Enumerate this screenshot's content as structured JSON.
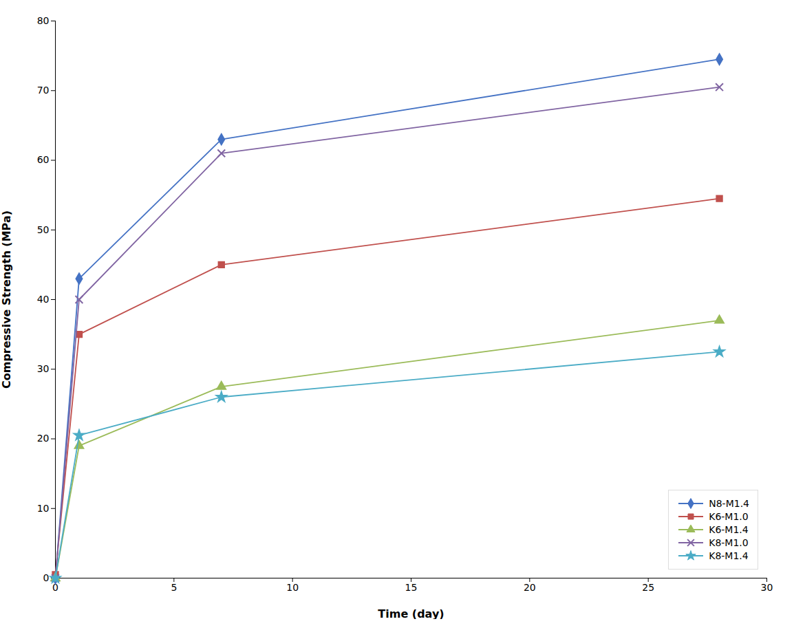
{
  "chart_data": {
    "type": "line",
    "xlabel": "Time (day)",
    "ylabel": "Compressive Strength (MPa)",
    "x": [
      0,
      1,
      7,
      28
    ],
    "series": [
      {
        "name": "N8-M1.4",
        "color": "#4472C4",
        "marker": "diamond",
        "values": [
          0.0,
          43.0,
          63.0,
          74.5
        ]
      },
      {
        "name": "K6-M1.0",
        "color": "#C0504D",
        "marker": "square",
        "values": [
          0.5,
          35.0,
          45.0,
          54.5
        ]
      },
      {
        "name": "K6-M1.4",
        "color": "#9BBB59",
        "marker": "triangle",
        "values": [
          0.0,
          19.0,
          27.5,
          37.0
        ]
      },
      {
        "name": "K8-M1.0",
        "color": "#8064A2",
        "marker": "x",
        "values": [
          0.0,
          40.0,
          61.0,
          70.5
        ]
      },
      {
        "name": "K8-M1.4",
        "color": "#4BACC6",
        "marker": "star",
        "values": [
          0.0,
          20.5,
          26.0,
          32.5
        ]
      }
    ],
    "xlim": [
      0,
      30
    ],
    "ylim": [
      0,
      80
    ],
    "xticks": [
      0,
      5,
      10,
      15,
      20,
      25,
      30
    ],
    "yticks": [
      0,
      10,
      20,
      30,
      40,
      50,
      60,
      70,
      80
    ],
    "grid": false,
    "legend": "lower right"
  }
}
